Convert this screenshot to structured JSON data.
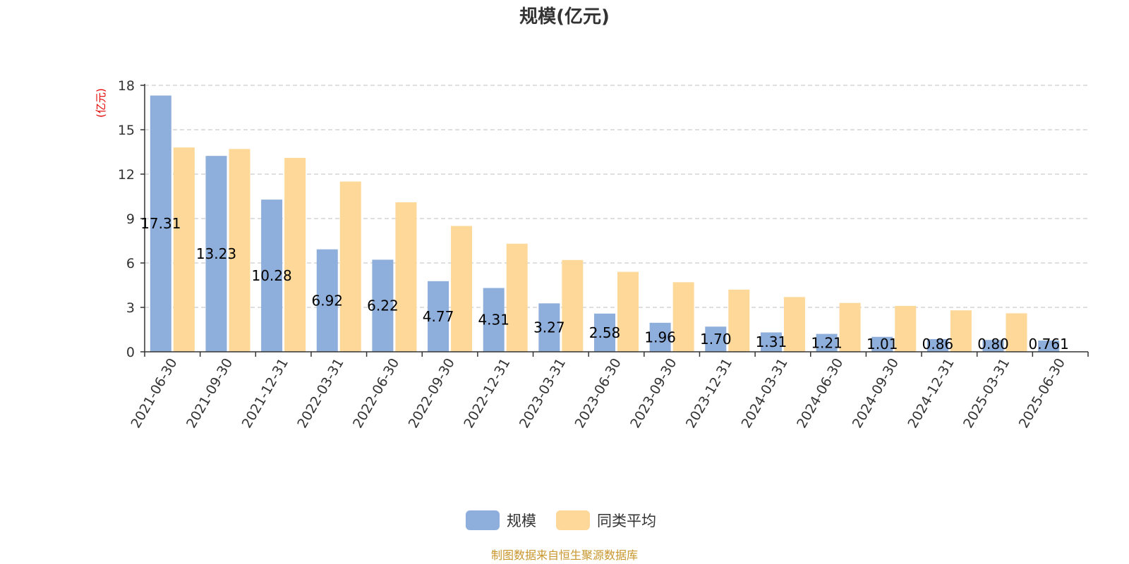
{
  "chart_data": {
    "type": "bar",
    "title": "规模(亿元)",
    "unit_label": "(亿元)",
    "categories": [
      "2021-06-30",
      "2021-09-30",
      "2021-12-31",
      "2022-03-31",
      "2022-06-30",
      "2022-09-30",
      "2022-12-31",
      "2023-03-31",
      "2023-06-30",
      "2023-09-30",
      "2023-12-31",
      "2024-03-31",
      "2024-06-30",
      "2024-09-30",
      "2024-12-31",
      "2025-03-31",
      "2025-06-30"
    ],
    "series": [
      {
        "name": "规模",
        "color": "#8eaedb",
        "values": [
          17.31,
          13.23,
          10.28,
          6.92,
          6.22,
          4.77,
          4.31,
          3.27,
          2.58,
          1.96,
          1.7,
          1.31,
          1.21,
          1.01,
          0.86,
          0.8,
          0.761
        ],
        "labels": [
          "17.31",
          "13.23",
          "10.28",
          "6.92",
          "6.22",
          "4.77",
          "4.31",
          "3.27",
          "2.58",
          "1.96",
          "1.70",
          "1.31",
          "1.21",
          "1.01",
          "0.86",
          "0.80",
          "0.761"
        ]
      },
      {
        "name": "同类平均",
        "color": "#fed899",
        "values": [
          13.8,
          13.7,
          13.1,
          11.5,
          10.1,
          8.5,
          7.3,
          6.2,
          5.4,
          4.7,
          4.2,
          3.7,
          3.3,
          3.1,
          2.8,
          2.6,
          null
        ]
      }
    ],
    "yticks": [
      "0",
      "3",
      "6",
      "9",
      "12",
      "15",
      "18"
    ],
    "ylim": [
      0,
      18
    ],
    "grid": true,
    "legend_position": "bottom-center",
    "source_note": "制图数据来自恒生聚源数据库"
  }
}
